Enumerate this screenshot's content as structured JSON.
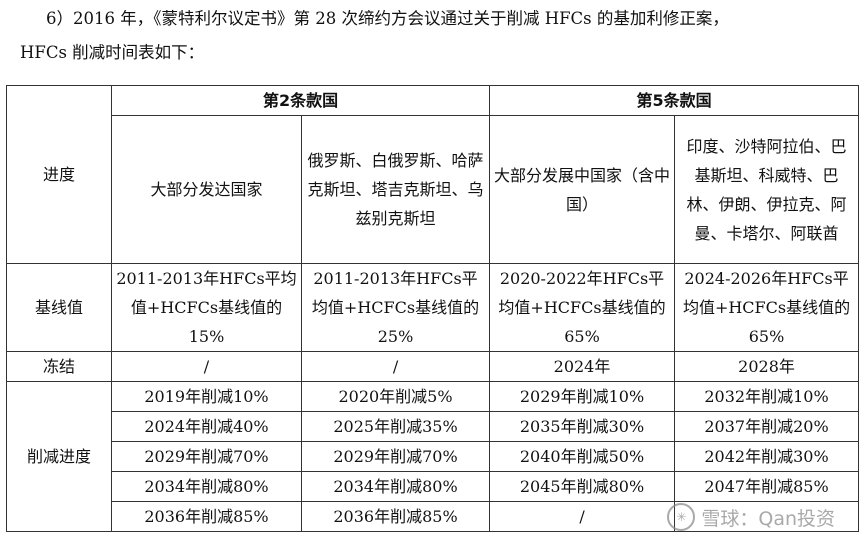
{
  "intro": {
    "line1": "6）2016 年，《蒙特利尔议定书》第 28 次缔约方会议通过关于削减 HFCs 的基加利修正案，",
    "line2": "HFCs 削减时间表如下："
  },
  "table": {
    "progress_header": "进度",
    "group1": "第2条款国",
    "group2": "第5条款国",
    "col1": "大部分发达国家",
    "col2": "俄罗斯、白俄罗斯、哈萨克斯坦、塔吉克斯坦、乌兹别克斯坦",
    "col3": "大部分发展中国家（含中国）",
    "col4": "印度、沙特阿拉伯、巴基斯坦、科威特、巴林、伊朗、伊拉克、阿曼、卡塔尔、阿联酋",
    "baseline_label": "基线值",
    "baseline": [
      "2011-2013年HFCs平均值+HCFCs基线值的15%",
      "2011-2013年HFCs平均值+HCFCs基线值的25%",
      "2020-2022年HFCs平均值+HCFCs基线值的65%",
      "2024-2026年HFCs平均值+HCFCs基线值的65%"
    ],
    "freeze_label": "冻结",
    "freeze": [
      "/",
      "/",
      "2024年",
      "2028年"
    ],
    "reduction_label": "削减进度",
    "reduction_rows": [
      [
        "2019年削减10%",
        "2020年削减5%",
        "2029年削减10%",
        "2032年削减10%"
      ],
      [
        "2024年削减40%",
        "2025年削减35%",
        "2035年削减30%",
        "2037年削减20%"
      ],
      [
        "2029年削减70%",
        "2029年削减70%",
        "2040年削减50%",
        "2042年削减30%"
      ],
      [
        "2034年削减80%",
        "2034年削减80%",
        "2045年削减80%",
        "2047年削减85%"
      ],
      [
        "2036年削减85%",
        "2036年削减85%",
        "/",
        ""
      ]
    ]
  },
  "watermark": {
    "text": "雪球：Qan投资",
    "icon": "snowball-logo-icon"
  }
}
